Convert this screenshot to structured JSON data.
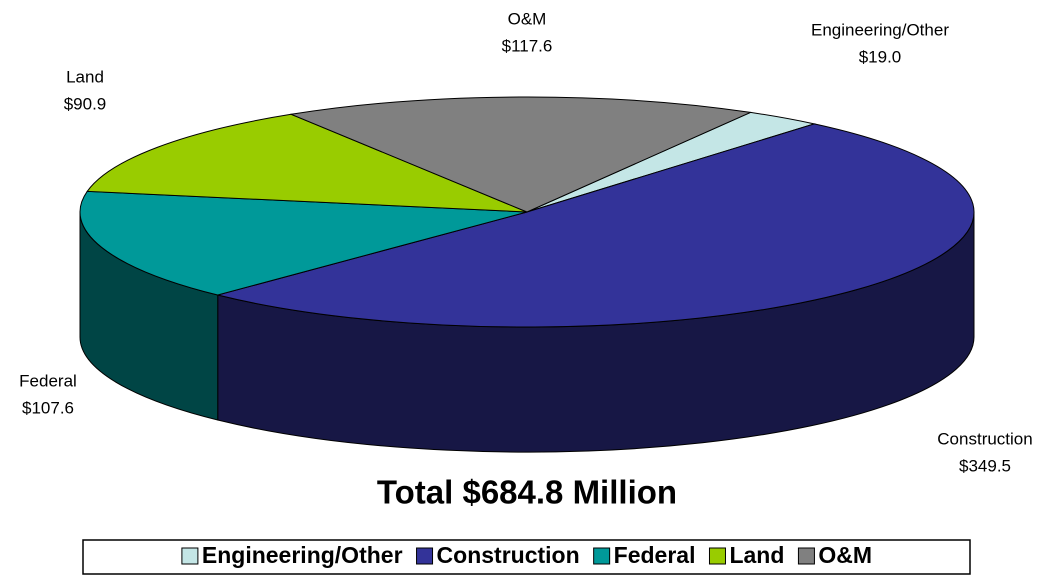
{
  "chart_data": {
    "type": "pie3d",
    "title": "Total $684.8 Million",
    "categories": [
      "Engineering/Other",
      "Construction",
      "Federal",
      "Land",
      "O&M"
    ],
    "values": [
      19.0,
      349.5,
      107.6,
      90.9,
      117.6
    ],
    "value_labels": [
      "$19.0",
      "$349.5",
      "$107.6",
      "$90.9",
      "$117.6"
    ],
    "colors": [
      "#c4e6e6",
      "#333399",
      "#009999",
      "#99cc00",
      "#808080"
    ],
    "legend": "bottom"
  }
}
